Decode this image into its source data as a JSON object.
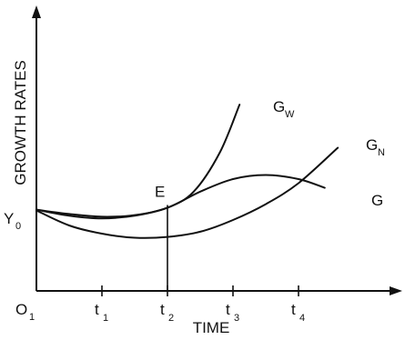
{
  "chart_data": {
    "type": "line",
    "title": "",
    "xlabel": "TIME",
    "ylabel": "GROWTH RATES",
    "origin_label": {
      "main": "O",
      "sub": "1"
    },
    "y_label_point": {
      "main": "Y",
      "sub": "0"
    },
    "xlim": [
      0,
      5
    ],
    "ylim": [
      0,
      10
    ],
    "grid": false,
    "x_ticks": [
      {
        "x": 1,
        "main": "t",
        "sub": "1"
      },
      {
        "x": 2,
        "main": "t",
        "sub": "2"
      },
      {
        "x": 3,
        "main": "t",
        "sub": "3"
      },
      {
        "x": 4,
        "main": "t",
        "sub": "4"
      }
    ],
    "series": [
      {
        "name": "G",
        "label_main": "G",
        "label_sub": "",
        "x": [
          0,
          0.5,
          1,
          1.5,
          2,
          2.5,
          3,
          3.5,
          4,
          4.4
        ],
        "y": [
          2.98,
          2.76,
          2.66,
          2.76,
          3.05,
          3.64,
          4.1,
          4.25,
          4.1,
          3.78
        ]
      },
      {
        "name": "G_W",
        "label_main": "G",
        "label_sub": "W",
        "x": [
          0,
          0.5,
          1,
          1.5,
          2,
          2.4,
          2.8,
          3.1
        ],
        "y": [
          2.98,
          2.82,
          2.72,
          2.78,
          3.05,
          3.64,
          5.08,
          6.83
        ]
      },
      {
        "name": "G_N",
        "label_main": "G",
        "label_sub": "N",
        "x": [
          0,
          0.5,
          1,
          1.5,
          2,
          2.5,
          3,
          3.5,
          4,
          4.6
        ],
        "y": [
          2.95,
          2.4,
          2.1,
          1.95,
          1.98,
          2.17,
          2.6,
          3.18,
          3.95,
          5.25
        ]
      }
    ],
    "annotations": [
      {
        "text": "E",
        "x": 2,
        "y": 3.05,
        "drop_line_to_x_axis": true
      }
    ]
  }
}
